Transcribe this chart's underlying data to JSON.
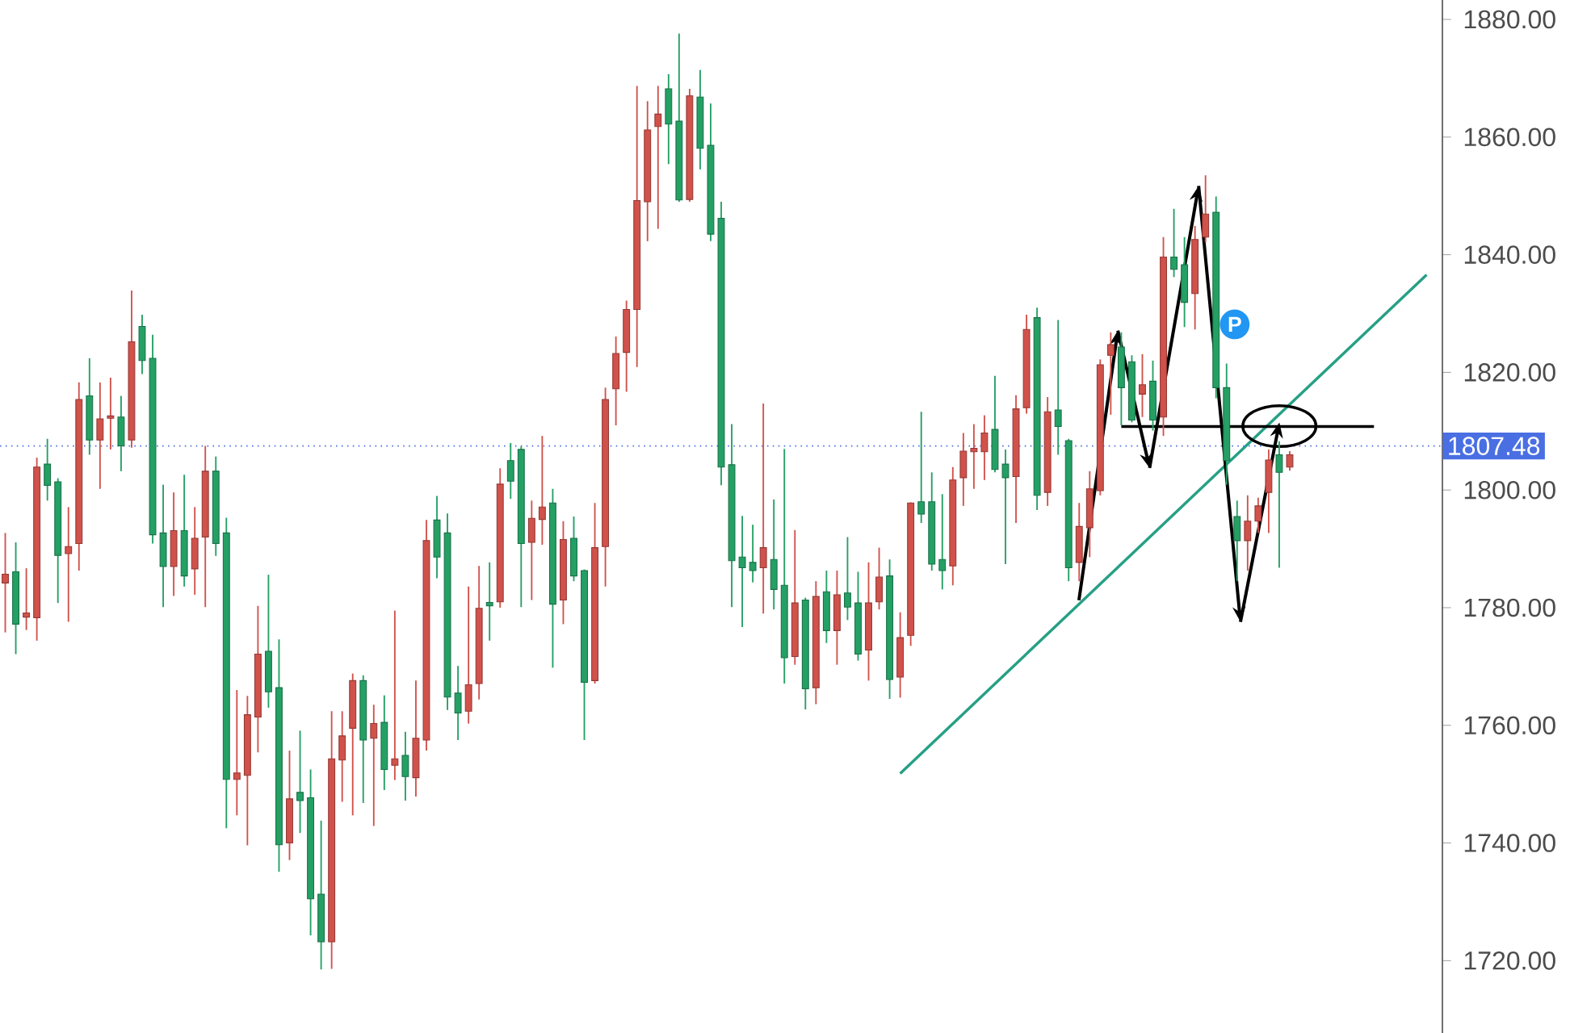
{
  "chart_data": {
    "type": "candlestick",
    "categories": [
      null,
      null,
      null,
      null,
      null,
      null,
      null,
      null,
      null,
      null,
      null,
      null,
      null,
      null,
      null,
      null,
      null,
      null,
      null,
      null,
      null,
      null,
      null,
      null,
      null,
      null,
      null,
      null,
      null,
      null,
      null,
      null,
      null,
      null,
      null,
      null,
      null,
      null,
      null,
      null,
      null,
      null,
      null,
      null,
      null,
      null,
      null,
      null,
      null,
      null,
      null,
      null,
      null,
      null,
      null,
      null,
      null,
      null,
      null,
      null,
      null,
      null,
      null,
      null,
      null,
      null,
      null,
      null,
      null,
      null,
      null,
      null,
      null,
      null,
      null,
      null,
      null,
      null,
      null,
      null,
      null,
      null,
      null,
      null,
      null,
      null,
      null,
      null,
      null,
      null,
      null,
      null,
      null,
      null,
      null,
      null,
      null,
      null,
      null,
      null,
      null,
      null,
      null,
      null,
      null,
      null,
      null,
      null,
      null,
      null,
      null,
      null,
      null,
      null,
      null,
      null,
      null,
      null,
      null,
      null,
      null,
      null,
      null,
      null,
      null,
      null,
      null,
      null,
      null,
      null,
      null,
      null,
      null,
      null,
      null,
      null,
      null
    ],
    "ohlc": [
      [
        1784.2,
        1792.7,
        1775.8,
        1785.7
      ],
      [
        1786.1,
        1791.1,
        1772.1,
        1777.2
      ],
      [
        1778.4,
        1786.7,
        1776.2,
        1779.1
      ],
      [
        1778.3,
        1805.5,
        1774.4,
        1803.9
      ],
      [
        1804.4,
        1808.7,
        1798.2,
        1800.8
      ],
      [
        1801.4,
        1802.0,
        1780.8,
        1788.9
      ],
      [
        1789.2,
        1797.1,
        1777.6,
        1790.4
      ],
      [
        1790.9,
        1818.3,
        1786.3,
        1815.4
      ],
      [
        1816.0,
        1822.4,
        1806.0,
        1808.5
      ],
      [
        1808.5,
        1818.3,
        1800.2,
        1812.1
      ],
      [
        1812.2,
        1819.1,
        1806.9,
        1812.6
      ],
      [
        1812.4,
        1816.0,
        1803.2,
        1807.5
      ],
      [
        1808.5,
        1833.9,
        1807.2,
        1825.2
      ],
      [
        1827.8,
        1829.8,
        1819.7,
        1822.0
      ],
      [
        1822.4,
        1826.4,
        1790.9,
        1792.4
      ],
      [
        1792.7,
        1800.9,
        1780.1,
        1787.0
      ],
      [
        1787.0,
        1799.6,
        1782.0,
        1793.1
      ],
      [
        1793.1,
        1802.6,
        1783.6,
        1785.4
      ],
      [
        1786.6,
        1797.1,
        1782.2,
        1791.8
      ],
      [
        1792.0,
        1807.5,
        1780.1,
        1803.2
      ],
      [
        1803.2,
        1805.7,
        1788.8,
        1790.9
      ],
      [
        1792.7,
        1795.3,
        1742.5,
        1750.8
      ],
      [
        1750.8,
        1766.0,
        1744.7,
        1751.9
      ],
      [
        1751.5,
        1765.0,
        1739.6,
        1761.8
      ],
      [
        1761.4,
        1780.3,
        1755.4,
        1772.1
      ],
      [
        1772.6,
        1785.6,
        1763.0,
        1765.7
      ],
      [
        1766.4,
        1774.6,
        1735.1,
        1739.7
      ],
      [
        1740.0,
        1755.7,
        1737.1,
        1747.5
      ],
      [
        1748.6,
        1759.1,
        1741.7,
        1747.2
      ],
      [
        1747.7,
        1752.5,
        1724.3,
        1730.5
      ],
      [
        1731.3,
        1743.8,
        1718.5,
        1723.2
      ],
      [
        1723.2,
        1762.4,
        1718.6,
        1754.3
      ],
      [
        1754.1,
        1762.4,
        1747.0,
        1758.2
      ],
      [
        1759.5,
        1768.8,
        1744.7,
        1767.6
      ],
      [
        1767.6,
        1768.5,
        1746.8,
        1757.5
      ],
      [
        1757.8,
        1763.5,
        1742.9,
        1760.3
      ],
      [
        1760.5,
        1765.1,
        1749.0,
        1752.5
      ],
      [
        1753.2,
        1779.5,
        1750.7,
        1754.3
      ],
      [
        1754.9,
        1758.9,
        1747.2,
        1751.3
      ],
      [
        1751.1,
        1767.6,
        1747.9,
        1757.8
      ],
      [
        1757.5,
        1794.9,
        1755.7,
        1791.4
      ],
      [
        1794.9,
        1799.0,
        1785.0,
        1788.6
      ],
      [
        1792.7,
        1796.0,
        1762.6,
        1764.8
      ],
      [
        1765.5,
        1770.1,
        1757.5,
        1762.1
      ],
      [
        1762.4,
        1783.6,
        1760.3,
        1766.9
      ],
      [
        1767.1,
        1787.1,
        1764.4,
        1779.9
      ],
      [
        1780.9,
        1787.7,
        1774.4,
        1780.3
      ],
      [
        1781.0,
        1803.7,
        1780.0,
        1801.0
      ],
      [
        1805.0,
        1808.0,
        1798.5,
        1801.5
      ],
      [
        1806.9,
        1807.4,
        1780.1,
        1790.9
      ],
      [
        1791.1,
        1798.2,
        1781.3,
        1795.2
      ],
      [
        1795.0,
        1809.2,
        1790.7,
        1797.1
      ],
      [
        1797.8,
        1800.2,
        1769.8,
        1780.6
      ],
      [
        1781.3,
        1794.7,
        1777.2,
        1791.6
      ],
      [
        1791.8,
        1795.5,
        1784.5,
        1785.4
      ],
      [
        1786.3,
        1786.5,
        1757.5,
        1767.3
      ],
      [
        1767.6,
        1797.8,
        1767.1,
        1790.2
      ],
      [
        1790.4,
        1817.4,
        1783.6,
        1815.4
      ],
      [
        1817.2,
        1826.1,
        1811.0,
        1823.2
      ],
      [
        1823.4,
        1832.2,
        1816.7,
        1830.7
      ],
      [
        1830.7,
        1868.7,
        1820.9,
        1849.2
      ],
      [
        1849.0,
        1866.1,
        1842.3,
        1861.2
      ],
      [
        1861.8,
        1868.7,
        1844.4,
        1863.9
      ],
      [
        1868.2,
        1870.7,
        1855.4,
        1862.2
      ],
      [
        1862.7,
        1877.6,
        1849.0,
        1849.3
      ],
      [
        1849.4,
        1868.2,
        1849.0,
        1867.0
      ],
      [
        1866.8,
        1871.4,
        1854.5,
        1858.1
      ],
      [
        1858.6,
        1865.7,
        1842.3,
        1843.5
      ],
      [
        1846.2,
        1849.0,
        1800.8,
        1803.9
      ],
      [
        1804.3,
        1811.2,
        1780.1,
        1788.0
      ],
      [
        1788.6,
        1795.6,
        1776.7,
        1786.8
      ],
      [
        1787.7,
        1794.1,
        1784.3,
        1786.3
      ],
      [
        1786.8,
        1814.7,
        1779.0,
        1790.2
      ],
      [
        1788.2,
        1798.4,
        1779.7,
        1783.1
      ],
      [
        1783.8,
        1807.0,
        1767.1,
        1771.5
      ],
      [
        1771.7,
        1793.2,
        1770.3,
        1780.8
      ],
      [
        1781.3,
        1781.7,
        1762.7,
        1766.2
      ],
      [
        1766.4,
        1784.5,
        1763.6,
        1781.9
      ],
      [
        1782.7,
        1786.3,
        1774.0,
        1776.1
      ],
      [
        1776.1,
        1786.3,
        1770.3,
        1782.2
      ],
      [
        1782.5,
        1792.0,
        1777.9,
        1780.1
      ],
      [
        1780.8,
        1786.1,
        1771.0,
        1772.1
      ],
      [
        1772.8,
        1787.7,
        1767.6,
        1780.8
      ],
      [
        1781.0,
        1790.2,
        1779.7,
        1785.2
      ],
      [
        1785.4,
        1788.2,
        1764.5,
        1767.8
      ],
      [
        1768.2,
        1779.2,
        1764.7,
        1774.9
      ],
      [
        1775.3,
        1797.9,
        1773.5,
        1797.8
      ],
      [
        1798.0,
        1813.3,
        1794.4,
        1795.9
      ],
      [
        1798.0,
        1803.0,
        1786.3,
        1787.4
      ],
      [
        1788.2,
        1799.3,
        1783.1,
        1786.3
      ],
      [
        1787.1,
        1803.9,
        1783.8,
        1801.7
      ],
      [
        1802.1,
        1809.7,
        1797.3,
        1806.6
      ],
      [
        1806.5,
        1811.2,
        1800.2,
        1807.1
      ],
      [
        1806.5,
        1812.7,
        1801.7,
        1809.7
      ],
      [
        1810.3,
        1819.4,
        1803.0,
        1803.5
      ],
      [
        1804.4,
        1806.9,
        1787.4,
        1802.1
      ],
      [
        1802.3,
        1816.1,
        1794.4,
        1813.8
      ],
      [
        1814.0,
        1829.8,
        1813.0,
        1827.3
      ],
      [
        1829.3,
        1831.0,
        1796.6,
        1799.1
      ],
      [
        1799.6,
        1815.8,
        1797.3,
        1813.3
      ],
      [
        1813.6,
        1828.9,
        1806.0,
        1810.8
      ],
      [
        1808.4,
        1808.7,
        1784.5,
        1786.8
      ],
      [
        1787.7,
        1797.8,
        1784.5,
        1793.8
      ],
      [
        1793.6,
        1803.2,
        1788.6,
        1800.2
      ],
      [
        1799.9,
        1822.2,
        1799.1,
        1821.3
      ],
      [
        1822.9,
        1826.8,
        1812.8,
        1824.7
      ],
      [
        1824.3,
        1826.8,
        1811.0,
        1817.4
      ],
      [
        1821.8,
        1822.9,
        1811.5,
        1811.9
      ],
      [
        1816.3,
        1823.1,
        1812.4,
        1817.9
      ],
      [
        1818.5,
        1822.0,
        1810.1,
        1811.9
      ],
      [
        1812.4,
        1843.0,
        1809.2,
        1839.6
      ],
      [
        1839.6,
        1847.8,
        1836.2,
        1837.5
      ],
      [
        1838.3,
        1843.0,
        1827.7,
        1831.9
      ],
      [
        1833.4,
        1844.9,
        1827.3,
        1842.6
      ],
      [
        1843.0,
        1853.5,
        1842.1,
        1846.9
      ],
      [
        1847.2,
        1849.9,
        1815.6,
        1817.4
      ],
      [
        1817.4,
        1821.5,
        1800.9,
        1805.0
      ],
      [
        1795.5,
        1798.2,
        1784.5,
        1791.4
      ],
      [
        1791.4,
        1799.1,
        1786.3,
        1794.7
      ],
      [
        1794.7,
        1798.7,
        1792.7,
        1797.3
      ],
      [
        1799.6,
        1806.9,
        1792.7,
        1805.1
      ],
      [
        1806.0,
        1808.3,
        1786.8,
        1803.0
      ],
      [
        1803.9,
        1806.6,
        1803.3,
        1806.0
      ],
      null,
      null,
      null,
      null,
      null,
      null,
      null,
      null,
      null,
      null,
      null,
      null,
      null,
      null
    ],
    "colors": [
      "#d1524b",
      "#24a065",
      "#d1524b",
      "#d1524b",
      "#24a065",
      "#24a065",
      "#d1524b",
      "#d1524b",
      "#24a065",
      "#d1524b",
      "#d1524b",
      "#24a065",
      "#d1524b",
      "#24a065",
      "#24a065",
      "#24a065",
      "#d1524b",
      "#24a065",
      "#d1524b",
      "#d1524b",
      "#24a065",
      "#24a065",
      "#d1524b",
      "#d1524b",
      "#d1524b",
      "#24a065",
      "#24a065",
      "#d1524b",
      "#24a065",
      "#24a065",
      "#24a065",
      "#d1524b",
      "#d1524b",
      "#d1524b",
      "#24a065",
      "#d1524b",
      "#24a065",
      "#d1524b",
      "#24a065",
      "#d1524b",
      "#d1524b",
      "#24a065",
      "#24a065",
      "#24a065",
      "#d1524b",
      "#d1524b",
      "#24a065",
      "#d1524b",
      "#24a065",
      "#24a065",
      "#d1524b",
      "#d1524b",
      "#24a065",
      "#d1524b",
      "#24a065",
      "#24a065",
      "#d1524b",
      "#d1524b",
      "#d1524b",
      "#d1524b",
      "#d1524b",
      "#d1524b",
      "#d1524b",
      "#24a065",
      "#24a065",
      "#d1524b",
      "#24a065",
      "#24a065",
      "#24a065",
      "#24a065",
      "#24a065",
      "#24a065",
      "#d1524b",
      "#24a065",
      "#24a065",
      "#d1524b",
      "#24a065",
      "#d1524b",
      "#24a065",
      "#d1524b",
      "#24a065",
      "#24a065",
      "#d1524b",
      "#d1524b",
      "#24a065",
      "#d1524b",
      "#d1524b",
      "#24a065",
      "#24a065",
      "#24a065",
      "#d1524b",
      "#d1524b",
      "#d1524b",
      "#d1524b",
      "#24a065",
      "#24a065",
      "#d1524b",
      "#d1524b",
      "#24a065",
      "#d1524b",
      "#24a065",
      "#24a065",
      "#d1524b",
      "#d1524b",
      "#d1524b",
      "#d1524b",
      "#24a065",
      "#24a065",
      "#d1524b",
      "#24a065",
      "#d1524b",
      "#24a065",
      "#24a065",
      "#d1524b",
      "#d1524b",
      "#24a065",
      "#24a065",
      "#24a065",
      "#d1524b",
      "#d1524b",
      "#d1524b",
      "#24a065",
      "#d1524b",
      null,
      null,
      null,
      null,
      null,
      null,
      null,
      null,
      null,
      null,
      null,
      null,
      null,
      null
    ],
    "series": [
      {
        "type": "line",
        "color": "#26a085",
        "values": [
          null,
          null,
          null,
          null,
          null,
          null,
          null,
          null,
          null,
          null,
          null,
          null,
          null,
          null,
          null,
          null,
          null,
          null,
          null,
          null,
          null,
          null,
          null,
          null,
          null,
          null,
          null,
          null,
          null,
          null,
          null,
          null,
          null,
          null,
          null,
          null,
          null,
          null,
          null,
          null,
          null,
          null,
          null,
          null,
          null,
          null,
          null,
          null,
          null,
          null,
          null,
          null,
          null,
          null,
          null,
          null,
          null,
          null,
          null,
          null,
          null,
          null,
          null,
          null,
          null,
          null,
          null,
          null,
          null,
          null,
          null,
          null,
          null,
          null,
          null,
          null,
          null,
          null,
          null,
          null,
          null,
          null,
          null,
          null,
          null,
          1751.8,
          null,
          null,
          null,
          null,
          null,
          null,
          null,
          null,
          null,
          null,
          null,
          null,
          null,
          null,
          null,
          null,
          null,
          null,
          null,
          null,
          null,
          null,
          null,
          null,
          null,
          null,
          null,
          null,
          null,
          null,
          null,
          null,
          null,
          null,
          null,
          null,
          null,
          null,
          null,
          null,
          null,
          null,
          null,
          null,
          null,
          null,
          null,
          null,
          null,
          1836.6,
          null
        ]
      },
      {
        "type": "line",
        "color": "#000000",
        "values": [
          null,
          null,
          null,
          null,
          null,
          null,
          null,
          null,
          null,
          null,
          null,
          null,
          null,
          null,
          null,
          null,
          null,
          null,
          null,
          null,
          null,
          null,
          null,
          null,
          null,
          null,
          null,
          null,
          null,
          null,
          null,
          null,
          null,
          null,
          null,
          null,
          null,
          null,
          null,
          null,
          null,
          null,
          null,
          null,
          null,
          null,
          null,
          null,
          null,
          null,
          null,
          null,
          null,
          null,
          null,
          null,
          null,
          null,
          null,
          null,
          null,
          null,
          null,
          null,
          null,
          null,
          null,
          null,
          null,
          null,
          null,
          null,
          null,
          null,
          null,
          null,
          null,
          null,
          null,
          null,
          null,
          null,
          null,
          null,
          null,
          null,
          null,
          null,
          null,
          null,
          null,
          null,
          null,
          null,
          null,
          null,
          null,
          null,
          null,
          null,
          null,
          null,
          null,
          null,
          null,
          null,
          1810.8,
          null,
          null,
          null,
          null,
          null,
          null,
          null,
          null,
          null,
          null,
          null,
          null,
          null,
          null,
          null,
          null,
          null,
          null,
          null,
          null,
          null,
          null,
          null,
          1810.8,
          null,
          null,
          null,
          null,
          null,
          null
        ]
      }
    ],
    "marker": "none",
    "line_style": "solid",
    "ylim": [
      1707.7,
      1883.3
    ],
    "yticks": [
      {
        "value": 1720,
        "label": "1720.00"
      },
      {
        "value": 1740,
        "label": "1740.00"
      },
      {
        "value": 1760,
        "label": "1760.00"
      },
      {
        "value": 1780,
        "label": "1780.00"
      },
      {
        "value": 1800,
        "label": "1800.00"
      },
      {
        "value": 1820,
        "label": "1820.00"
      },
      {
        "value": 1840,
        "label": "1840.00"
      },
      {
        "value": 1860,
        "label": "1860.00"
      },
      {
        "value": 1880,
        "label": "1880.00"
      }
    ],
    "ref_lines": [
      {
        "axis": "y",
        "value": 1807.48,
        "label": "1807.48",
        "color": "#4a6fe3",
        "line_style": "dotted"
      }
    ],
    "annotations": [
      "P"
    ],
    "tick_labels": "y",
    "grid": false
  }
}
